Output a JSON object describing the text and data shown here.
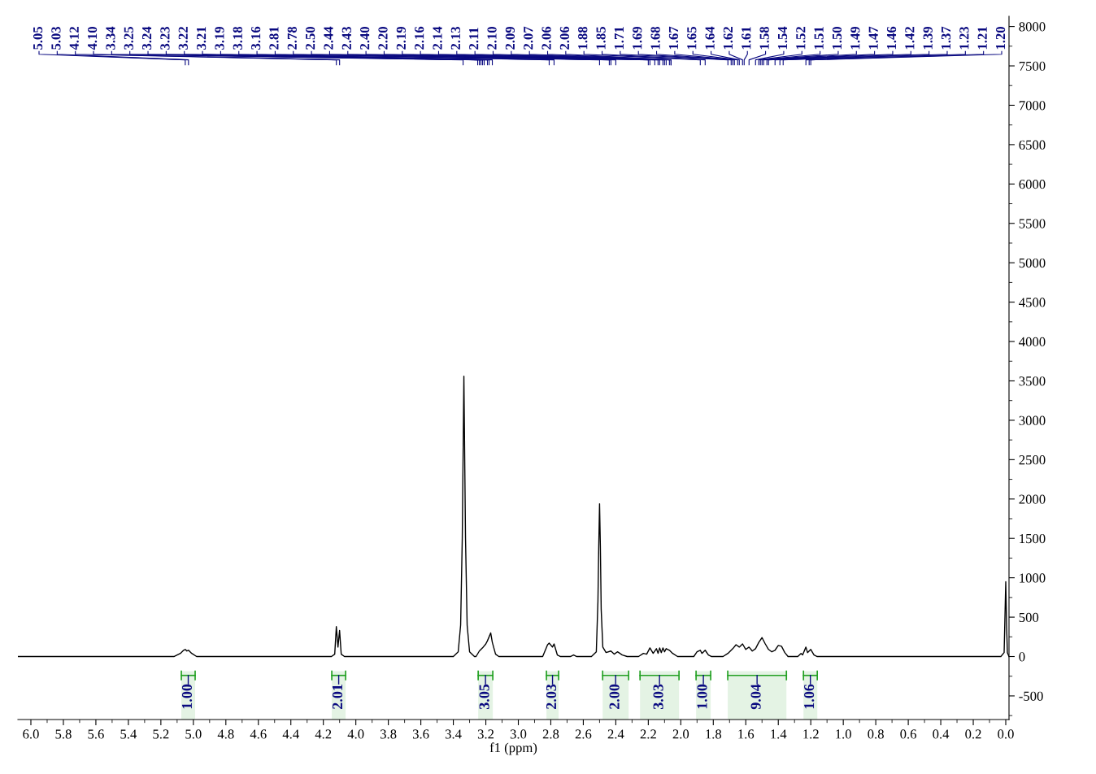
{
  "chart_data": {
    "type": "line",
    "xlabel": "f1 (ppm)",
    "xlim": [
      6.08,
      -0.02
    ],
    "ylim": [
      -800,
      8130
    ],
    "xticks": [
      {
        "value": 6.0,
        "label": "6.0"
      },
      {
        "value": 5.8,
        "label": "5.8"
      },
      {
        "value": 5.6,
        "label": "5.6"
      },
      {
        "value": 5.4,
        "label": "5.4"
      },
      {
        "value": 5.2,
        "label": "5.2"
      },
      {
        "value": 5.0,
        "label": "5.0"
      },
      {
        "value": 4.8,
        "label": "4.8"
      },
      {
        "value": 4.6,
        "label": "4.6"
      },
      {
        "value": 4.4,
        "label": "4.4"
      },
      {
        "value": 4.2,
        "label": "4.2"
      },
      {
        "value": 4.0,
        "label": "4.0"
      },
      {
        "value": 3.8,
        "label": "3.8"
      },
      {
        "value": 3.6,
        "label": "3.6"
      },
      {
        "value": 3.4,
        "label": "3.4"
      },
      {
        "value": 3.2,
        "label": "3.2"
      },
      {
        "value": 3.0,
        "label": "3.0"
      },
      {
        "value": 2.8,
        "label": "2.8"
      },
      {
        "value": 2.6,
        "label": "2.6"
      },
      {
        "value": 2.4,
        "label": "2.4"
      },
      {
        "value": 2.2,
        "label": "2.2"
      },
      {
        "value": 2.0,
        "label": "2.0"
      },
      {
        "value": 1.8,
        "label": "1.8"
      },
      {
        "value": 1.6,
        "label": "1.6"
      },
      {
        "value": 1.4,
        "label": "1.4"
      },
      {
        "value": 1.2,
        "label": "1.2"
      },
      {
        "value": 1.0,
        "label": "1.0"
      },
      {
        "value": 0.8,
        "label": "0.8"
      },
      {
        "value": 0.6,
        "label": "0.6"
      },
      {
        "value": 0.4,
        "label": "0.4"
      },
      {
        "value": 0.2,
        "label": "0.2"
      },
      {
        "value": 0.0,
        "label": "0.0"
      }
    ],
    "yticks": [
      -500,
      0,
      500,
      1000,
      1500,
      2000,
      2500,
      3000,
      3500,
      4000,
      4500,
      5000,
      5500,
      6000,
      6500,
      7000,
      7500,
      8000
    ],
    "grid": false,
    "marker": "none",
    "line_style": "solid",
    "series": [
      {
        "color": "#000000",
        "x": [
          6.08,
          5.12,
          5.08,
          5.06,
          5.05,
          5.04,
          5.03,
          5.01,
          4.98,
          4.15,
          4.13,
          4.12,
          4.11,
          4.1,
          4.09,
          4.07,
          3.4,
          3.37,
          3.355,
          3.345,
          3.335,
          3.325,
          3.315,
          3.3,
          3.27,
          3.26,
          3.24,
          3.22,
          3.2,
          3.19,
          3.17,
          3.16,
          3.14,
          3.12,
          2.85,
          2.82,
          2.81,
          2.79,
          2.78,
          2.76,
          2.74,
          2.68,
          2.66,
          2.64,
          2.55,
          2.52,
          2.51,
          2.505,
          2.5,
          2.495,
          2.49,
          2.48,
          2.46,
          2.43,
          2.41,
          2.39,
          2.36,
          2.33,
          2.26,
          2.23,
          2.21,
          2.19,
          2.17,
          2.15,
          2.14,
          2.13,
          2.12,
          2.11,
          2.1,
          2.09,
          2.07,
          2.05,
          2.02,
          1.92,
          1.9,
          1.88,
          1.87,
          1.85,
          1.83,
          1.81,
          1.74,
          1.71,
          1.68,
          1.66,
          1.64,
          1.62,
          1.6,
          1.58,
          1.56,
          1.54,
          1.52,
          1.5,
          1.48,
          1.46,
          1.44,
          1.42,
          1.4,
          1.38,
          1.36,
          1.34,
          1.28,
          1.26,
          1.25,
          1.23,
          1.22,
          1.2,
          1.18,
          1.16,
          0.03,
          0.01,
          0.005,
          0.0,
          -0.005,
          -0.01,
          -0.02
        ],
        "values": [
          0,
          0,
          40,
          80,
          90,
          70,
          80,
          40,
          0,
          0,
          30,
          380,
          120,
          330,
          30,
          0,
          0,
          60,
          400,
          1500,
          3560,
          1500,
          400,
          60,
          0,
          0,
          70,
          110,
          160,
          200,
          300,
          180,
          30,
          0,
          0,
          150,
          170,
          120,
          160,
          20,
          0,
          0,
          20,
          0,
          0,
          60,
          700,
          1400,
          1940,
          1400,
          600,
          120,
          50,
          70,
          30,
          60,
          20,
          0,
          0,
          40,
          30,
          110,
          40,
          100,
          40,
          110,
          50,
          110,
          60,
          100,
          80,
          40,
          0,
          0,
          60,
          80,
          40,
          80,
          20,
          0,
          0,
          40,
          100,
          150,
          120,
          160,
          90,
          120,
          70,
          100,
          180,
          240,
          160,
          90,
          60,
          80,
          140,
          130,
          50,
          0,
          0,
          40,
          20,
          120,
          50,
          90,
          20,
          0,
          0,
          50,
          500,
          950,
          400,
          50,
          0
        ]
      }
    ],
    "annotations": [
      "5.05",
      "5.03",
      "4.12",
      "4.10",
      "3.34",
      "3.25",
      "3.24",
      "3.23",
      "3.22",
      "3.21",
      "3.19",
      "3.18",
      "3.16",
      "2.81",
      "2.78",
      "2.50",
      "2.44",
      "2.43",
      "2.40",
      "2.20",
      "2.19",
      "2.16",
      "2.14",
      "2.13",
      "2.11",
      "2.10",
      "2.09",
      "2.07",
      "2.06",
      "2.06",
      "1.88",
      "1.85",
      "1.71",
      "1.69",
      "1.68",
      "1.67",
      "1.65",
      "1.64",
      "1.62",
      "1.61",
      "1.58",
      "1.54",
      "1.52",
      "1.51",
      "1.50",
      "1.49",
      "1.47",
      "1.46",
      "1.42",
      "1.39",
      "1.37",
      "1.23",
      "1.21",
      "1.20"
    ],
    "bands": [
      {
        "axis": "x",
        "from": 5.074,
        "to": 4.989,
        "label": "1.00",
        "color": "#22a022"
      },
      {
        "axis": "x",
        "from": 4.148,
        "to": 4.063,
        "label": "2.01",
        "color": "#22a022"
      },
      {
        "axis": "x",
        "from": 3.247,
        "to": 3.157,
        "label": "3.05",
        "color": "#22a022"
      },
      {
        "axis": "x",
        "from": 2.827,
        "to": 2.752,
        "label": "2.03",
        "color": "#22a022"
      },
      {
        "axis": "x",
        "from": 2.481,
        "to": 2.321,
        "label": "2.00",
        "color": "#22a022"
      },
      {
        "axis": "x",
        "from": 2.251,
        "to": 2.011,
        "label": "3.03",
        "color": "#22a022"
      },
      {
        "axis": "x",
        "from": 1.906,
        "to": 1.816,
        "label": "1.00",
        "color": "#22a022"
      },
      {
        "axis": "x",
        "from": 1.711,
        "to": 1.35,
        "label": "9.04",
        "color": "#22a022"
      },
      {
        "axis": "x",
        "from": 1.245,
        "to": 1.16,
        "label": "1.06",
        "color": "#22a022"
      }
    ]
  }
}
